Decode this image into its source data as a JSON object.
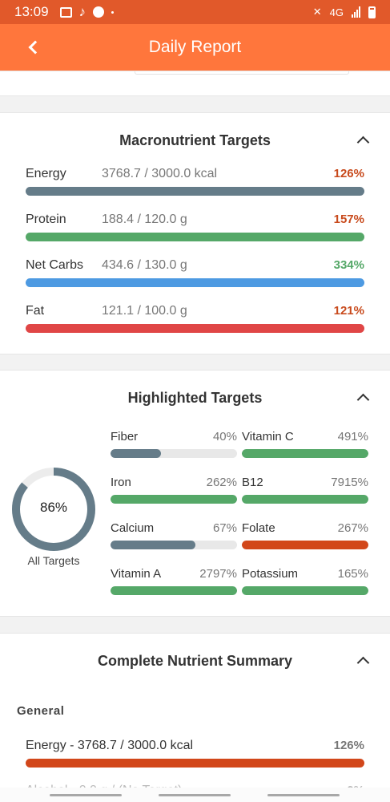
{
  "status": {
    "time": "13:09",
    "network": "4G"
  },
  "appbar": {
    "title": "Daily Report"
  },
  "colors": {
    "header": "#ff763c",
    "status_bar": "#e1592a",
    "over": "#c84a1c",
    "good": "#55a868",
    "gray": "#657c89",
    "blue": "#4d9ae2",
    "red": "#e04646",
    "orange": "#d2471a"
  },
  "macro": {
    "title": "Macronutrient Targets",
    "rows": [
      {
        "label": "Energy",
        "value": "3768.7 / 3000.0 kcal",
        "percent": "126%",
        "bar_color": "#657c89",
        "pct_color": "#c84a1c"
      },
      {
        "label": "Protein",
        "value": "188.4 / 120.0 g",
        "percent": "157%",
        "bar_color": "#55a868",
        "pct_color": "#c84a1c"
      },
      {
        "label": "Net Carbs",
        "value": "434.6 / 130.0 g",
        "percent": "334%",
        "bar_color": "#4d9ae2",
        "pct_color": "#55a868"
      },
      {
        "label": "Fat",
        "value": "121.1 / 100.0 g",
        "percent": "121%",
        "bar_color": "#e04646",
        "pct_color": "#c84a1c"
      }
    ]
  },
  "highlighted": {
    "title": "Highlighted Targets",
    "overall": {
      "percent": "86%",
      "fraction": 0.86,
      "label": "All Targets"
    },
    "items": [
      {
        "label": "Fiber",
        "percent": "40%",
        "fill": 0.4,
        "color": "#657c89"
      },
      {
        "label": "Vitamin C",
        "percent": "491%",
        "fill": 1.0,
        "color": "#55a868"
      },
      {
        "label": "Iron",
        "percent": "262%",
        "fill": 1.0,
        "color": "#55a868"
      },
      {
        "label": "B12",
        "percent": "7915%",
        "fill": 1.0,
        "color": "#55a868"
      },
      {
        "label": "Calcium",
        "percent": "67%",
        "fill": 0.67,
        "color": "#657c89"
      },
      {
        "label": "Folate",
        "percent": "267%",
        "fill": 1.0,
        "color": "#d2471a"
      },
      {
        "label": "Vitamin A",
        "percent": "2797%",
        "fill": 1.0,
        "color": "#55a868"
      },
      {
        "label": "Potassium",
        "percent": "165%",
        "fill": 1.0,
        "color": "#55a868"
      }
    ]
  },
  "summary": {
    "title": "Complete Nutrient Summary",
    "section": "General",
    "rows": [
      {
        "label": "Energy - 3768.7 / 3000.0 kcal",
        "percent": "126%",
        "bar_color": "#d2471a"
      },
      {
        "label": "Alcohol - 0.0 g / (No Target)",
        "percent": "0%"
      }
    ]
  }
}
